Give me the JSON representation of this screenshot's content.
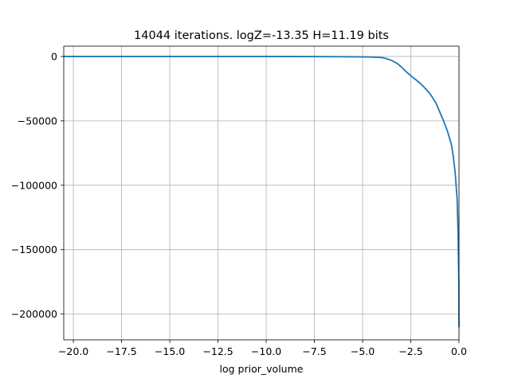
{
  "chart_data": {
    "type": "line",
    "title": "14044 iterations. logZ=-13.35 H=11.19 bits",
    "xlabel": "log prior_volume",
    "ylabel": "",
    "xlim": [
      -20.5,
      0
    ],
    "ylim": [
      -220000,
      8000
    ],
    "grid": true,
    "xticks": [
      -20.0,
      -17.5,
      -15.0,
      -12.5,
      -10.0,
      -7.5,
      -5.0,
      -2.5,
      0.0
    ],
    "xtick_labels": [
      "−20.0",
      "−17.5",
      "−15.0",
      "−12.5",
      "−10.0",
      "−7.5",
      "−5.0",
      "−2.5",
      "0.0"
    ],
    "yticks": [
      0,
      -50000,
      -100000,
      -150000,
      -200000
    ],
    "ytick_labels": [
      "0",
      "−50000",
      "−100000",
      "−150000",
      "−200000"
    ],
    "series": [
      {
        "color": "#1f77b4",
        "x": [
          -20.5,
          -15.0,
          -10.0,
          -7.0,
          -5.0,
          -4.5,
          -4.0,
          -3.8,
          -3.5,
          -3.2,
          -3.0,
          -2.8,
          -2.5,
          -2.2,
          -2.0,
          -1.8,
          -1.5,
          -1.2,
          -1.0,
          -0.8,
          -0.6,
          -0.4,
          -0.3,
          -0.2,
          -0.1,
          -0.05,
          -0.01,
          0.0
        ],
        "y": [
          0,
          0,
          0,
          -100,
          -300,
          -500,
          -900,
          -1500,
          -3000,
          -5500,
          -8000,
          -11000,
          -15000,
          -18500,
          -21000,
          -24000,
          -29000,
          -36000,
          -43000,
          -50000,
          -58000,
          -68000,
          -77000,
          -90000,
          -110000,
          -135000,
          -175000,
          -210000
        ]
      }
    ]
  }
}
